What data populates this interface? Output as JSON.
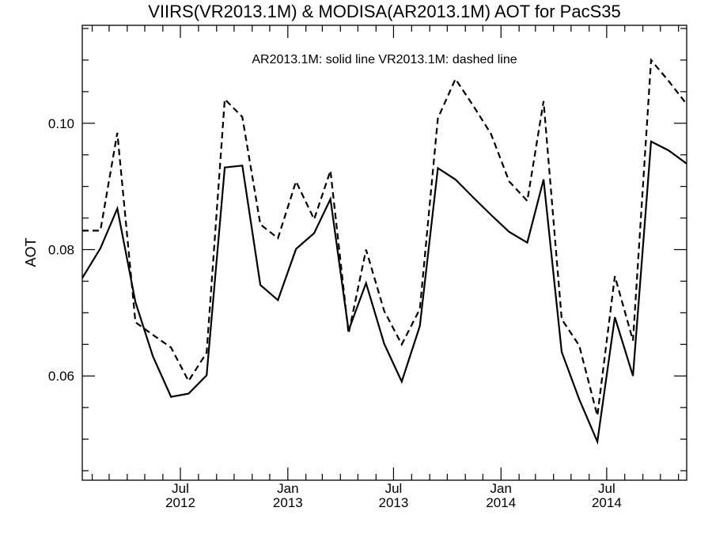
{
  "chart_data": {
    "type": "line",
    "title": "VIIRS(VR2013.1M) & MODISA(AR2013.1M)  AOT for PacS35",
    "annotation": "AR2013.1M: solid line   VR2013.1M: dashed line",
    "ylabel": "AOT",
    "xlabel": "",
    "xlim": [
      "2012-01-15",
      "2014-11-15"
    ],
    "ylim": [
      0.0435,
      0.1155
    ],
    "y_ticks": [
      "0.06",
      "0.08",
      "0.10"
    ],
    "x_ticks": [
      {
        "month": "Jul",
        "year": "2012",
        "date": "2012-07-01"
      },
      {
        "month": "Jan",
        "year": "2013",
        "date": "2013-01-01"
      },
      {
        "month": "Jul",
        "year": "2013",
        "date": "2013-07-01"
      },
      {
        "month": "Jan",
        "year": "2014",
        "date": "2014-01-01"
      },
      {
        "month": "Jul",
        "year": "2014",
        "date": "2014-07-01"
      }
    ],
    "x": [
      "2012-01-15",
      "2012-02-15",
      "2012-03-15",
      "2012-04-15",
      "2012-05-15",
      "2012-06-15",
      "2012-07-15",
      "2012-08-15",
      "2012-09-15",
      "2012-10-15",
      "2012-11-15",
      "2012-12-15",
      "2013-01-15",
      "2013-02-15",
      "2013-03-15",
      "2013-04-15",
      "2013-05-15",
      "2013-06-15",
      "2013-07-15",
      "2013-08-15",
      "2013-09-15",
      "2013-10-15",
      "2013-11-15",
      "2013-12-15",
      "2014-01-15",
      "2014-02-15",
      "2014-03-15",
      "2014-04-15",
      "2014-05-15",
      "2014-06-15",
      "2014-07-15",
      "2014-08-15",
      "2014-09-15",
      "2014-10-15",
      "2014-11-15"
    ],
    "series": [
      {
        "name": "AR2013.1M",
        "style": "solid",
        "values": [
          0.0755,
          0.0802,
          0.0865,
          0.0717,
          0.0631,
          0.0567,
          0.0572,
          0.0601,
          0.093,
          0.0933,
          0.0744,
          0.072,
          0.0801,
          0.0826,
          0.088,
          0.0672,
          0.0747,
          0.0651,
          0.0591,
          0.0679,
          0.0929,
          0.0911,
          0.0882,
          0.0855,
          0.0828,
          0.0811,
          0.0911,
          0.0638,
          0.0563,
          0.0496,
          0.0693,
          0.06,
          0.0971,
          0.0957,
          0.0936
        ]
      },
      {
        "name": "VR2013.1M",
        "style": "dashed",
        "values": [
          0.083,
          0.083,
          0.0985,
          0.0685,
          0.0665,
          0.0645,
          0.0592,
          0.0637,
          0.1038,
          0.101,
          0.084,
          0.0818,
          0.0908,
          0.0848,
          0.0925,
          0.0667,
          0.08,
          0.0703,
          0.065,
          0.0706,
          0.1008,
          0.107,
          0.1027,
          0.0983,
          0.0908,
          0.0877,
          0.1035,
          0.069,
          0.0648,
          0.0537,
          0.0758,
          0.0656,
          0.11,
          0.1067,
          0.103
        ]
      }
    ],
    "grid": false,
    "legend": "none"
  }
}
